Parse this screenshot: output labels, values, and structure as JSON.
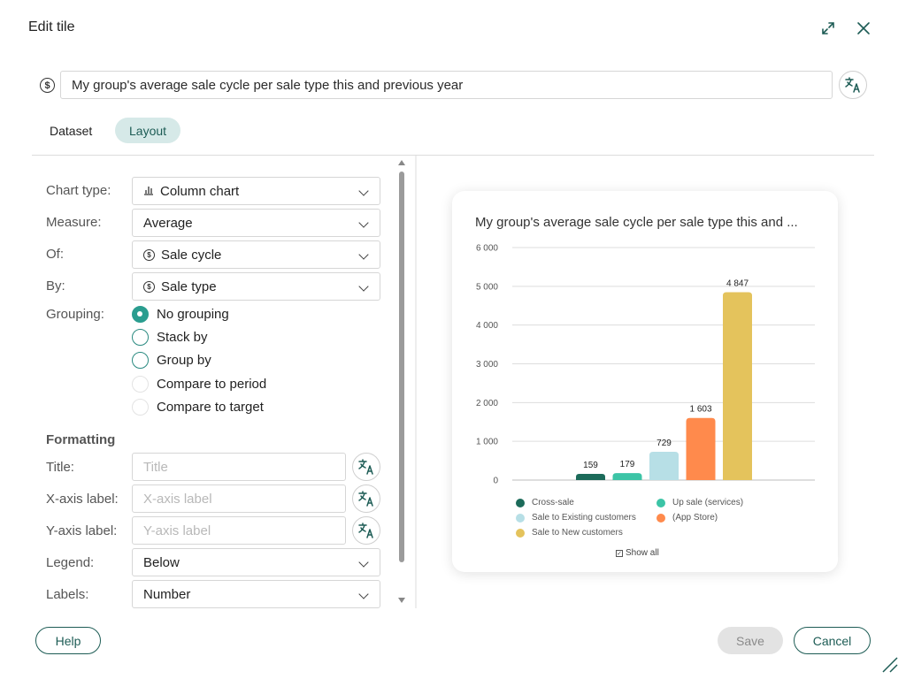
{
  "dialog": {
    "title": "Edit tile"
  },
  "tile": {
    "name": "My group's average sale cycle per sale type this and previous year"
  },
  "tabs": [
    {
      "label": "Dataset",
      "active": false
    },
    {
      "label": "Layout",
      "active": true
    }
  ],
  "form": {
    "chart_type": {
      "label": "Chart type:",
      "value": "Column chart"
    },
    "measure": {
      "label": "Measure:",
      "value": "Average"
    },
    "of": {
      "label": "Of:",
      "value": "Sale cycle"
    },
    "by": {
      "label": "By:",
      "value": "Sale type"
    },
    "grouping": {
      "label": "Grouping:",
      "options": [
        {
          "label": "No grouping",
          "selected": true,
          "enabled": true
        },
        {
          "label": "Stack by",
          "selected": false,
          "enabled": true
        },
        {
          "label": "Group by",
          "selected": false,
          "enabled": true
        },
        {
          "label": "Compare to period",
          "selected": false,
          "enabled": false
        },
        {
          "label": "Compare to target",
          "selected": false,
          "enabled": false
        }
      ]
    },
    "formatting": {
      "heading": "Formatting",
      "title": {
        "label": "Title:",
        "placeholder": "Title"
      },
      "x_axis": {
        "label": "X-axis label:",
        "placeholder": "X-axis label"
      },
      "y_axis": {
        "label": "Y-axis label:",
        "placeholder": "Y-axis label"
      },
      "legend": {
        "label": "Legend:",
        "value": "Below"
      },
      "labels": {
        "label": "Labels:",
        "value": "Number"
      }
    }
  },
  "preview": {
    "title": "My group's average sale cycle per sale type this and ...",
    "show_all": "Show all"
  },
  "chart_data": {
    "type": "bar",
    "title": "My group's average sale cycle per sale type this and ...",
    "xlabel": "",
    "ylabel": "",
    "ylim": [
      0,
      6000
    ],
    "y_ticks": [
      0,
      1000,
      2000,
      3000,
      4000,
      5000,
      6000
    ],
    "y_tick_labels": [
      "0",
      "1 000",
      "2 000",
      "3 000",
      "4 000",
      "5 000",
      "6 000"
    ],
    "grid": true,
    "legend_position": "bottom",
    "categories": [
      "Cross-sale",
      "Up sale (services)",
      "Sale to Existing customers",
      "(App Store)",
      "Sale to New customers"
    ],
    "values": [
      159,
      179,
      729,
      1603,
      4847
    ],
    "data_labels": [
      "159",
      "179",
      "729",
      "1 603",
      "4 847"
    ],
    "colors": [
      "#1c6b5a",
      "#3cc4a6",
      "#b7dfe6",
      "#ff8a4c",
      "#e4c35c"
    ]
  },
  "footer": {
    "help": "Help",
    "save": "Save",
    "cancel": "Cancel"
  },
  "theme": {
    "accent": "#1d5c55",
    "tab_active_bg": "#d6e9e8",
    "radio": "#2a9d8f"
  }
}
